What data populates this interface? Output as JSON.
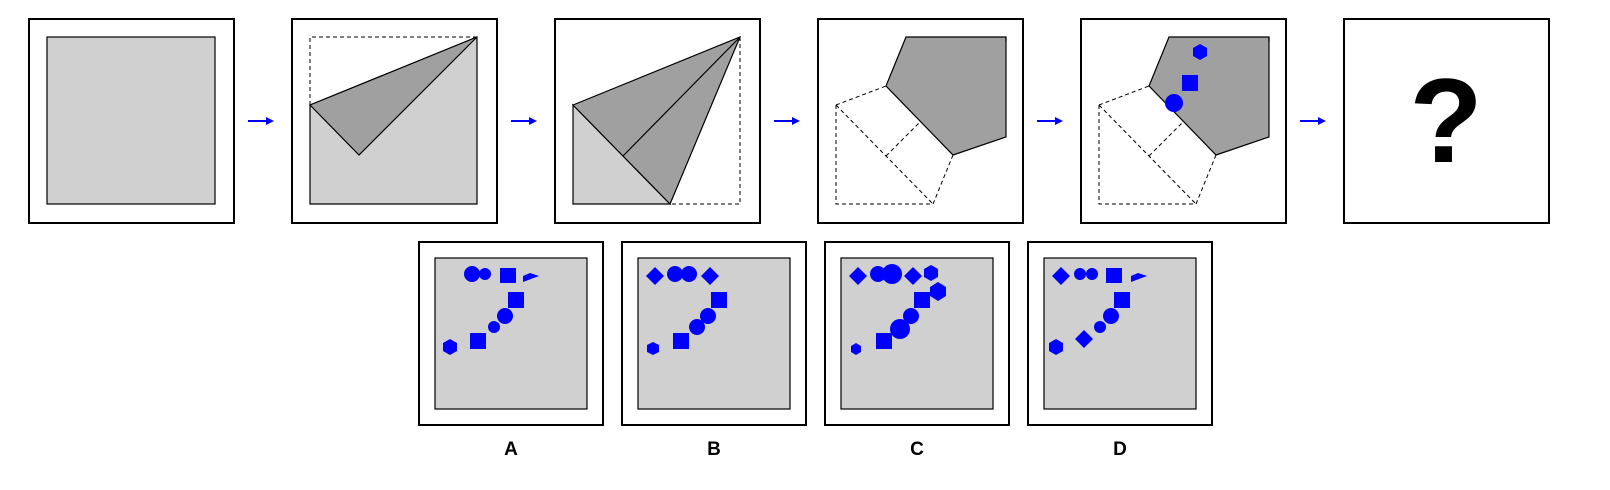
{
  "puzzle": {
    "sequence": [
      {
        "step": 1,
        "state": "square"
      },
      {
        "step": 2,
        "state": "top-right corner folded"
      },
      {
        "step": 3,
        "state": "folded again"
      },
      {
        "step": 4,
        "state": "folded into pentagon"
      },
      {
        "step": 5,
        "state": "punched shapes: hexagon, square, circle"
      },
      {
        "step": 6,
        "state": "unknown"
      }
    ],
    "question_mark": "?",
    "options": [
      {
        "label": "A"
      },
      {
        "label": "B"
      },
      {
        "label": "C"
      },
      {
        "label": "D"
      }
    ]
  },
  "colors": {
    "paper": "#d0d0d0",
    "folded": "#a0a0a0",
    "punch": "#0000ff",
    "arrow": "#0000ff",
    "outline": "#000000"
  }
}
